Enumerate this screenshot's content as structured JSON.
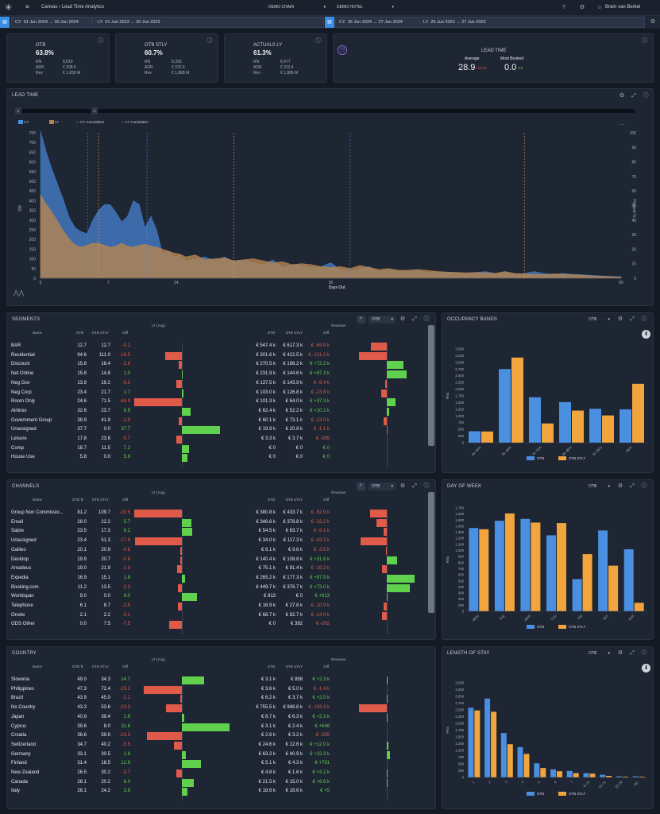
{
  "topbar": {
    "breadcrumb_root": "Canvas",
    "breadcrumb_page": "Lead Time Analytics",
    "chain": "DEMO CHAIN",
    "hotel": "DEMO HOTEL",
    "user": "Bram van Berkel"
  },
  "dates": {
    "cy_label": "CY",
    "cy_range": "01 Jun 2024 → 30 Jun 2024",
    "ly_label": "LY",
    "ly_range": "01 Jun 2023 → 30 Jun 2023",
    "cy2_label": "CY",
    "cy2_range": "26 Jun 2024 → 27 Jun 2024",
    "ly2_label": "LY",
    "ly2_range": "26 Jun 2023 → 27 Jun 2023"
  },
  "kpis": [
    {
      "title": "OTB",
      "value": "63.8%",
      "rn": "8,819",
      "adr": "€ 208.5",
      "rev": "€ 1,839 M"
    },
    {
      "title": "OTB STLY",
      "value": "60.7%",
      "rn": "8,393",
      "adr": "€ 222.6",
      "rev": "€ 1,868 M"
    },
    {
      "title": "ACTUALS LY",
      "value": "61.3%",
      "rn": "8,477",
      "adr": "€ 222.4",
      "rev": "€ 1,885 M"
    }
  ],
  "kpi_labels": {
    "rn": "RN",
    "adr": "ADR",
    "rev": "Rev"
  },
  "lead": {
    "title": "LEAD TIME",
    "avg_label": "Average",
    "avg_value": "28.9",
    "avg_diff": "↓ 10.01",
    "mb_label": "Most Booked",
    "mb_value": "0.0",
    "mb_diff": "0.0"
  },
  "leadchart": {
    "title": "LEAD TIME",
    "legend": [
      "CY",
      "LY",
      "CY Cumulative",
      "LY Cumulative"
    ],
    "ylabel": "RN",
    "y2label": "Percent %",
    "xlabel": "Days Out",
    "yticks": [
      "0",
      "50",
      "100",
      "150",
      "200",
      "250",
      "300",
      "350",
      "400",
      "450",
      "500",
      "550",
      "600",
      "650",
      "700",
      "750"
    ],
    "y2ticks": [
      "0",
      "10",
      "20",
      "30",
      "40",
      "50",
      "60",
      "70",
      "80",
      "90",
      "100"
    ],
    "xticks": [
      "0",
      "7",
      "14",
      "30",
      "60"
    ],
    "slider": [
      "0",
      "0"
    ]
  },
  "colors": {
    "otb": "#4a8fe0",
    "stly": "#f2a53c",
    "neg": "#e05a4a",
    "pos": "#5fd14d",
    "bg": "#141a24",
    "panel": "#1e2533"
  },
  "table_headers": {
    "name": "Name",
    "otb": "OTB",
    "stly": "OTB STLY",
    "diff": "Diff",
    "lt": "LT (Avg)",
    "revenue": "Revenue",
    "otb_sort": "OTB ⇅"
  },
  "segments": {
    "title": "SEGMENTS",
    "select": "OTB",
    "rows": [
      {
        "name": "BAR",
        "otb": "12.7",
        "stly": "12.7",
        "diff": "-0.1",
        "rotb": "€ 547.4 k",
        "rstly": "€ 617.3 k",
        "rdiff": "€ -69.9 k"
      },
      {
        "name": "Residential",
        "otb": "94.6",
        "stly": "111.0",
        "diff": "-16.5",
        "rotb": "€ 301.6 k",
        "rstly": "€ 422.5 k",
        "rdiff": "€ -121.0 k"
      },
      {
        "name": "Discount",
        "otb": "15.6",
        "stly": "18.4",
        "diff": "-2.8",
        "rotb": "€ 270.5 k",
        "rstly": "€ 198.2 k",
        "rdiff": "€ +72.3 k"
      },
      {
        "name": "Net Online",
        "otb": "15.8",
        "stly": "14.8",
        "diff": "1.0",
        "rotb": "€ 231.9 k",
        "rstly": "€ 144.6 k",
        "rdiff": "€ +87.3 k"
      },
      {
        "name": "Neg Gov",
        "otb": "13.9",
        "stly": "19.2",
        "diff": "-5.3",
        "rotb": "€ 137.5 k",
        "rstly": "€ 143.9 k",
        "rdiff": "€ -6.4 k"
      },
      {
        "name": "Neg Corp",
        "otb": "23.4",
        "stly": "21.7",
        "diff": "1.7",
        "rotb": "€ 103.0 k",
        "rstly": "€ 126.8 k",
        "rdiff": "€ -23.8 k"
      },
      {
        "name": "Room Only",
        "otb": "24.6",
        "stly": "71.5",
        "diff": "-46.9",
        "rotb": "€ 101.3 k",
        "rstly": "€ 64.0 k",
        "rdiff": "€ +37.3 k"
      },
      {
        "name": "Airlines",
        "otb": "32.6",
        "stly": "23.7",
        "diff": "8.9",
        "rotb": "€ 62.4 k",
        "rstly": "€ 52.2 k",
        "rdiff": "€ +10.2 k"
      },
      {
        "name": "Government Group",
        "otb": "38.9",
        "stly": "41.9",
        "diff": "-2.9",
        "rotb": "€ 60.1 k",
        "rstly": "€ 73.1 k",
        "rdiff": "€ -13.0 k"
      },
      {
        "name": "Unassigned",
        "otb": "37.7",
        "stly": "0.0",
        "diff": "37.7",
        "rotb": "€ 19.9 k",
        "rstly": "€ 20.9 k",
        "rdiff": "€ -1.1 k"
      },
      {
        "name": "Leisure",
        "otb": "17.8",
        "stly": "23.6",
        "diff": "-5.7",
        "rotb": "€ 3.3 k",
        "rstly": "€ 3.7 k",
        "rdiff": "€ -395"
      },
      {
        "name": "Comp",
        "otb": "18.7",
        "stly": "11.5",
        "diff": "7.2",
        "rotb": "€ 0",
        "rstly": "€ 0",
        "rdiff": "€ 0"
      },
      {
        "name": "House Use",
        "otb": "5.8",
        "stly": "0.0",
        "diff": "5.8",
        "rotb": "€ 0",
        "rstly": "€ 0",
        "rdiff": "€ 0"
      }
    ]
  },
  "channels": {
    "title": "CHANNELS",
    "select": "OTB",
    "rows": [
      {
        "name": "Group Non Commissio...",
        "otb": "81.2",
        "stly": "109.7",
        "diff": "-28.5",
        "rotb": "€ 380.8 k",
        "rstly": "€ 433.7 k",
        "rdiff": "€ -52.9 k"
      },
      {
        "name": "Email",
        "otb": "28.0",
        "stly": "22.2",
        "diff": "5.7",
        "rotb": "€ 346.6 k",
        "rstly": "€ 378.8 k",
        "rdiff": "€ -32.2 k"
      },
      {
        "name": "Sabre",
        "otb": "23.5",
        "stly": "17.3",
        "diff": "6.2",
        "rotb": "€ 54.5 k",
        "rstly": "€ 63.7 k",
        "rdiff": "€ -9.1 k"
      },
      {
        "name": "Unassigned",
        "otb": "23.4",
        "stly": "51.3",
        "diff": "-27.9",
        "rotb": "€ 34.0 k",
        "rstly": "€ 117.3 k",
        "rdiff": "€ -83.3 k"
      },
      {
        "name": "Galileo",
        "otb": "20.1",
        "stly": "20.9",
        "diff": "-0.8",
        "rotb": "€ 6.1 k",
        "rstly": "€ 9.6 k",
        "rdiff": "€ -3.5 k"
      },
      {
        "name": "Desktop",
        "otb": "19.9",
        "stly": "20.7",
        "diff": "-0.8",
        "rotb": "€ 140.4 k",
        "rstly": "€ 108.8 k",
        "rdiff": "€ +31.6 k"
      },
      {
        "name": "Amadeus",
        "otb": "19.0",
        "stly": "21.9",
        "diff": "-2.9",
        "rotb": "€ 75.1 k",
        "rstly": "€ 91.4 k",
        "rdiff": "€ -16.3 k"
      },
      {
        "name": "Expedia",
        "otb": "16.9",
        "stly": "15.1",
        "diff": "1.8",
        "rotb": "€ 265.2 k",
        "rstly": "€ 177.3 k",
        "rdiff": "€ +87.9 k"
      },
      {
        "name": "Booking.com",
        "otb": "11.2",
        "stly": "13.5",
        "diff": "-2.3",
        "rotb": "€ 449.7 k",
        "rstly": "€ 376.7 k",
        "rdiff": "€ +73.0 k"
      },
      {
        "name": "Worldspan",
        "otb": "9.0",
        "stly": "0.0",
        "diff": "9.0",
        "rotb": "€ 813",
        "rstly": "€ 0",
        "rdiff": "€ +813"
      },
      {
        "name": "Telephone",
        "otb": "6.1",
        "stly": "8.7",
        "diff": "-2.5",
        "rotb": "€ 16.9 k",
        "rstly": "€ 27.8 k",
        "rdiff": "€ -10.9 k"
      },
      {
        "name": "Onsite",
        "otb": "2.1",
        "stly": "2.2",
        "diff": "-0.1",
        "rotb": "€ 68.7 k",
        "rstly": "€ 82.7 k",
        "rdiff": "€ -14.0 k"
      },
      {
        "name": "GDS Other",
        "otb": "0.0",
        "stly": "7.5",
        "diff": "-7.5",
        "rotb": "€ 0",
        "rstly": "€ 392",
        "rdiff": "€ -392"
      }
    ]
  },
  "country": {
    "title": "COUNTRY",
    "rows": [
      {
        "name": "Slovenia",
        "otb": "49.0",
        "stly": "34.3",
        "diff": "14.7",
        "rotb": "€ 3.1 k",
        "rstly": "€ 858",
        "rdiff": "€ +2.3 k"
      },
      {
        "name": "Philippines",
        "otb": "47.3",
        "stly": "72.4",
        "diff": "-25.2",
        "rotb": "€ 3.6 k",
        "rstly": "€ 5.0 k",
        "rdiff": "€ -1.4 k"
      },
      {
        "name": "Brazil",
        "otb": "43.9",
        "stly": "45.0",
        "diff": "-1.1",
        "rotb": "€ 6.2 k",
        "rstly": "€ 3.7 k",
        "rdiff": "€ +2.5 k"
      },
      {
        "name": "No Country",
        "otb": "43.3",
        "stly": "53.6",
        "diff": "-10.3",
        "rotb": "€ 755.5 k",
        "rstly": "€ 948.8 k",
        "rdiff": "€ -193.3 k"
      },
      {
        "name": "Japan",
        "otb": "40.9",
        "stly": "39.4",
        "diff": "1.6",
        "rotb": "€ 8.7 k",
        "rstly": "€ 6.3 k",
        "rdiff": "€ +2.3 k"
      },
      {
        "name": "Cyprus",
        "otb": "39.6",
        "stly": "8.0",
        "diff": "31.6",
        "rotb": "€ 3.1 k",
        "rstly": "€ 2.4 k",
        "rdiff": "€ +646"
      },
      {
        "name": "Croatia",
        "otb": "36.6",
        "stly": "59.9",
        "diff": "-23.3",
        "rotb": "€ 2.6 k",
        "rstly": "€ 3.2 k",
        "rdiff": "€ -585"
      },
      {
        "name": "Switzerland",
        "otb": "34.7",
        "stly": "40.2",
        "diff": "-5.5",
        "rotb": "€ 24.6 k",
        "rstly": "€ 12.6 k",
        "rdiff": "€ +12.0 k"
      },
      {
        "name": "Germany",
        "otb": "33.1",
        "stly": "30.5",
        "diff": "2.6",
        "rotb": "€ 63.2 k",
        "rstly": "€ 40.9 k",
        "rdiff": "€ +22.3 k"
      },
      {
        "name": "Finland",
        "otb": "31.4",
        "stly": "18.5",
        "diff": "12.9",
        "rotb": "€ 5.1 k",
        "rstly": "€ 4.3 k",
        "rdiff": "€ +791"
      },
      {
        "name": "New Zealand",
        "otb": "26.5",
        "stly": "30.2",
        "diff": "-3.7",
        "rotb": "€ 4.8 k",
        "rstly": "€ 1.6 k",
        "rdiff": "€ +3.2 k"
      },
      {
        "name": "Canada",
        "otb": "28.1",
        "stly": "20.2",
        "diff": "8.0",
        "rotb": "€ 21.5 k",
        "rstly": "€ 15.0 k",
        "rdiff": "€ +6.6 k"
      },
      {
        "name": "Italy",
        "otb": "28.1",
        "stly": "24.2",
        "diff": "3.9",
        "rotb": "€ 18.6 k",
        "rstly": "€ 18.6 k",
        "rdiff": "€ +5"
      }
    ]
  },
  "chart_data": [
    {
      "type": "bar",
      "title": "OCCUPANCY BANDS",
      "ylabel": "RNs",
      "categories": [
        "84–90%",
        "90–95%",
        "70–75%",
        "80–85%",
        "50–65%",
        "+95%"
      ],
      "series": [
        {
          "name": "OTB",
          "values": [
            430,
            2750,
            1700,
            1520,
            1270,
            1250
          ]
        },
        {
          "name": "OTB STLY",
          "values": [
            420,
            3180,
            720,
            1200,
            1020,
            2200
          ]
        }
      ],
      "ylim": [
        0,
        3500
      ],
      "yticks": [
        "0",
        "250",
        "500",
        "750",
        "1,000",
        "1,250",
        "1,500",
        "1,750",
        "2,000",
        "2,250",
        "2,500",
        "2,750",
        "3,000",
        "3,250",
        "3,500"
      ]
    },
    {
      "type": "bar",
      "title": "DAY OF WEEK",
      "ylabel": "RNs",
      "categories": [
        "MON",
        "TUE",
        "WED",
        "THU",
        "FRI",
        "SAT",
        "SUN"
      ],
      "series": [
        {
          "name": "OTB",
          "values": [
            1370,
            1490,
            1520,
            1250,
            530,
            1330,
            1020
          ]
        },
        {
          "name": "OTB STLY",
          "values": [
            1350,
            1610,
            1460,
            1450,
            940,
            750,
            140
          ]
        }
      ],
      "ylim": [
        0,
        1700
      ],
      "yticks": [
        "0",
        "100",
        "200",
        "300",
        "400",
        "500",
        "600",
        "700",
        "800",
        "900",
        "1,000",
        "1,100",
        "1,200",
        "1,300",
        "1,400",
        "1,500",
        "1,600",
        "1,700"
      ]
    },
    {
      "type": "bar",
      "title": "LENGTH OF STAY",
      "ylabel": "RNs",
      "categories": [
        "1",
        "2",
        "3",
        "4",
        "5",
        "6",
        "7",
        "8–14",
        "15–21",
        "22–28",
        "28+"
      ],
      "series": [
        {
          "name": "OTB",
          "values": [
            2580,
            2920,
            1640,
            1120,
            520,
            300,
            240,
            160,
            100,
            40,
            40
          ]
        },
        {
          "name": "OTB STLY",
          "values": [
            2480,
            2430,
            1230,
            870,
            350,
            230,
            160,
            140,
            60,
            30,
            30
          ]
        }
      ],
      "ylim": [
        0,
        3500
      ],
      "yticks": [
        "0",
        "250",
        "500",
        "750",
        "1,000",
        "1,250",
        "1,500",
        "1,750",
        "2,000",
        "2,250",
        "2,500",
        "2,750",
        "3,000",
        "3,250",
        "3,500"
      ]
    }
  ],
  "bar_panels": [
    {
      "title": "OCCUPANCY BANDS",
      "select": "OTB"
    },
    {
      "title": "DAY OF WEEK",
      "select": "OTB"
    },
    {
      "title": "LENGTH OF STAY",
      "select": "OTB"
    }
  ],
  "legend": {
    "otb": "OTB",
    "stly": "OTB STLY"
  }
}
